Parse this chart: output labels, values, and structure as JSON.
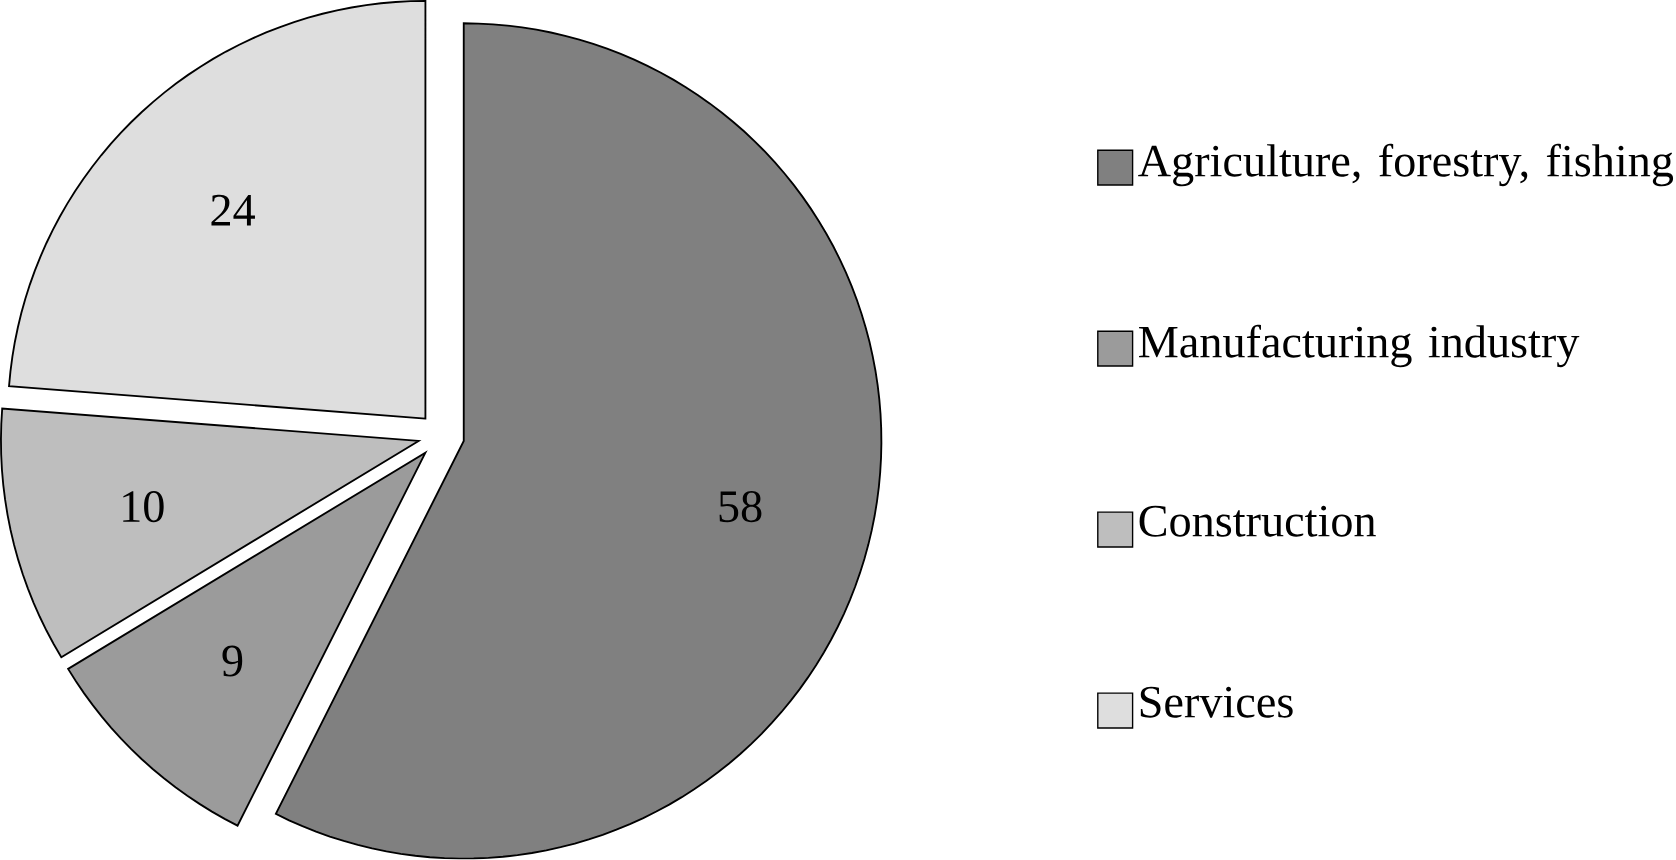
{
  "chart_data": {
    "type": "pie",
    "categories": [
      "Agriculture, forestry, fishing",
      "Manufacturing industry",
      "Construction",
      "Services"
    ],
    "values": [
      58,
      9,
      10,
      24
    ],
    "colors": [
      "#808080",
      "#9b9b9b",
      "#bebebe",
      "#dedede"
    ],
    "data_labels": true,
    "legend": "right"
  }
}
